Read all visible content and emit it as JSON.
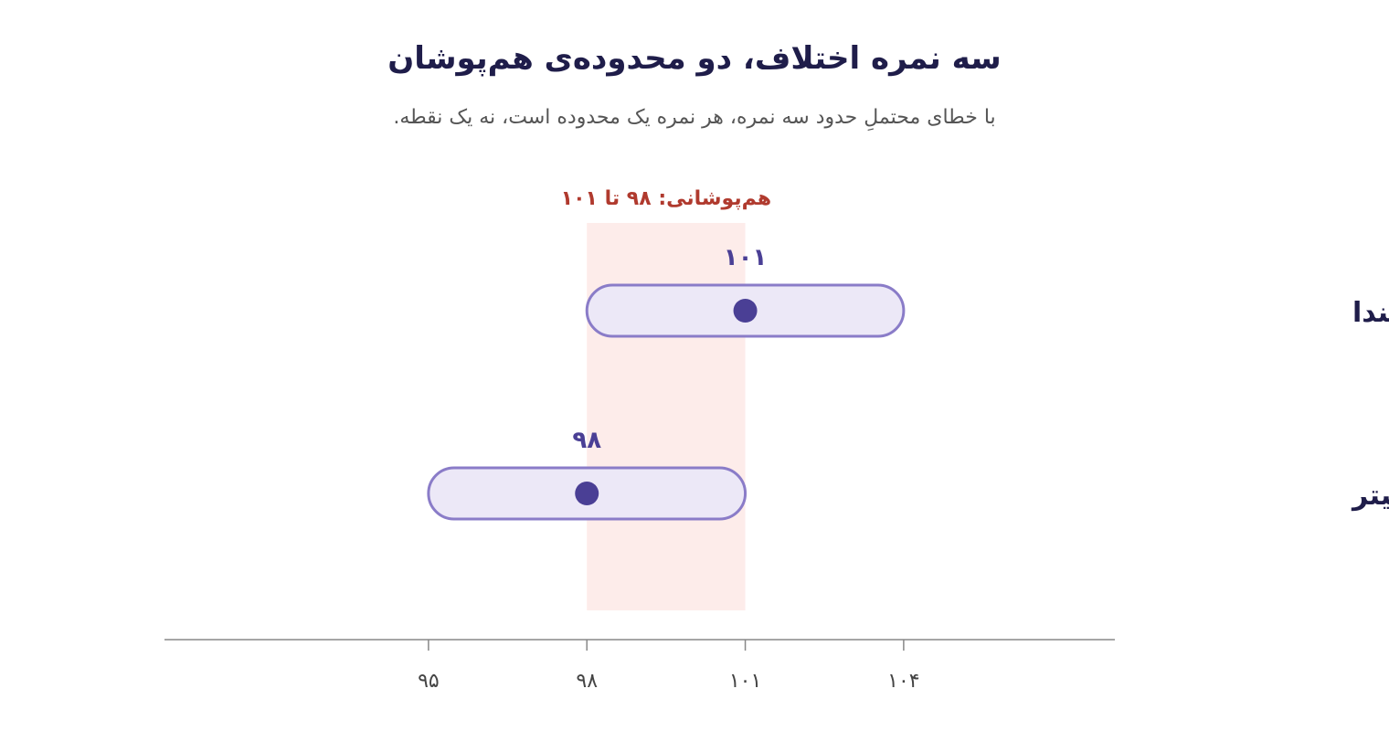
{
  "title": "سه نمره اختلاف، دو محدوده‌ی هم‌پوشان",
  "subtitle": "با خطای محتملِ حدود سه نمره، هر نمره یک محدوده است، نه یک نقطه.",
  "colors": {
    "range_fill": "#ece8f7",
    "range_stroke": "#8a7cc8",
    "point": "#4a3f95",
    "overlap_fill": "#fdecea",
    "overlap_text": "#b03a2e",
    "axis": "#888888"
  },
  "chart_data": {
    "type": "range-dot",
    "xlim": [
      90,
      108
    ],
    "xticks": [
      95,
      98,
      101,
      104
    ],
    "xtick_labels": [
      "۹۵",
      "۹۸",
      "۱۰۱",
      "۱۰۴"
    ],
    "overlap": {
      "from": 98,
      "to": 101,
      "label": "هم‌پوشانی: ۹۸ تا ۱۰۱"
    },
    "series": [
      {
        "name": "لیندا",
        "value": 101,
        "value_label": "۱۰۱",
        "low": 98,
        "high": 104
      },
      {
        "name": "پیتر",
        "value": 98,
        "value_label": "۹۸",
        "low": 95,
        "high": 101
      }
    ]
  }
}
